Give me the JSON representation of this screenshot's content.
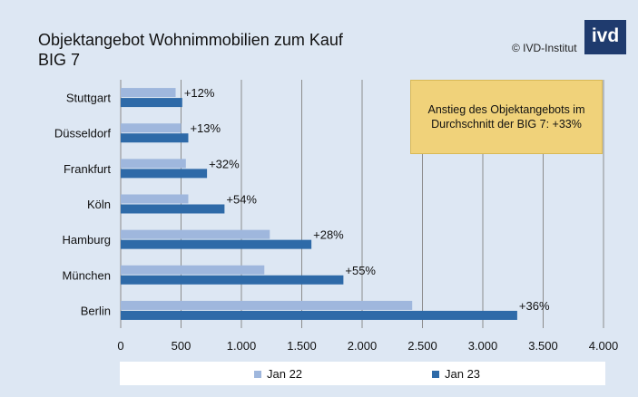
{
  "header": {
    "title_line1": "Objektangebot Wohnimmobilien zum Kauf",
    "title_line2": "BIG 7",
    "copyright": "© IVD-Institut",
    "logo_text": "ivd"
  },
  "annotation": {
    "line1": "Anstieg des Objektangebots im",
    "line2": "Durchschnitt der BIG 7: +33%"
  },
  "chart_data": {
    "type": "bar",
    "orientation": "horizontal",
    "categories": [
      "Stuttgart",
      "Düsseldorf",
      "Frankfurt",
      "Köln",
      "Hamburg",
      "München",
      "Berlin"
    ],
    "series": [
      {
        "name": "Jan 22",
        "color": "#9fb7dd",
        "values": [
          455,
          500,
          540,
          560,
          1235,
          1190,
          2415
        ]
      },
      {
        "name": "Jan 23",
        "color": "#2e6aa8",
        "values": [
          510,
          560,
          715,
          860,
          1580,
          1845,
          3285
        ]
      }
    ],
    "change_labels": [
      "+12%",
      "+13%",
      "+32%",
      "+54%",
      "+28%",
      "+55%",
      "+36%"
    ],
    "xlim": [
      0,
      4000
    ],
    "x_ticks": [
      0,
      500,
      1000,
      1500,
      2000,
      2500,
      3000,
      3500,
      4000
    ],
    "x_tick_labels": [
      "0",
      "500",
      "1.000",
      "1.500",
      "2.000",
      "2.500",
      "3.000",
      "3.500",
      "4.000"
    ],
    "grid": "vertical",
    "legend": "bottom"
  }
}
